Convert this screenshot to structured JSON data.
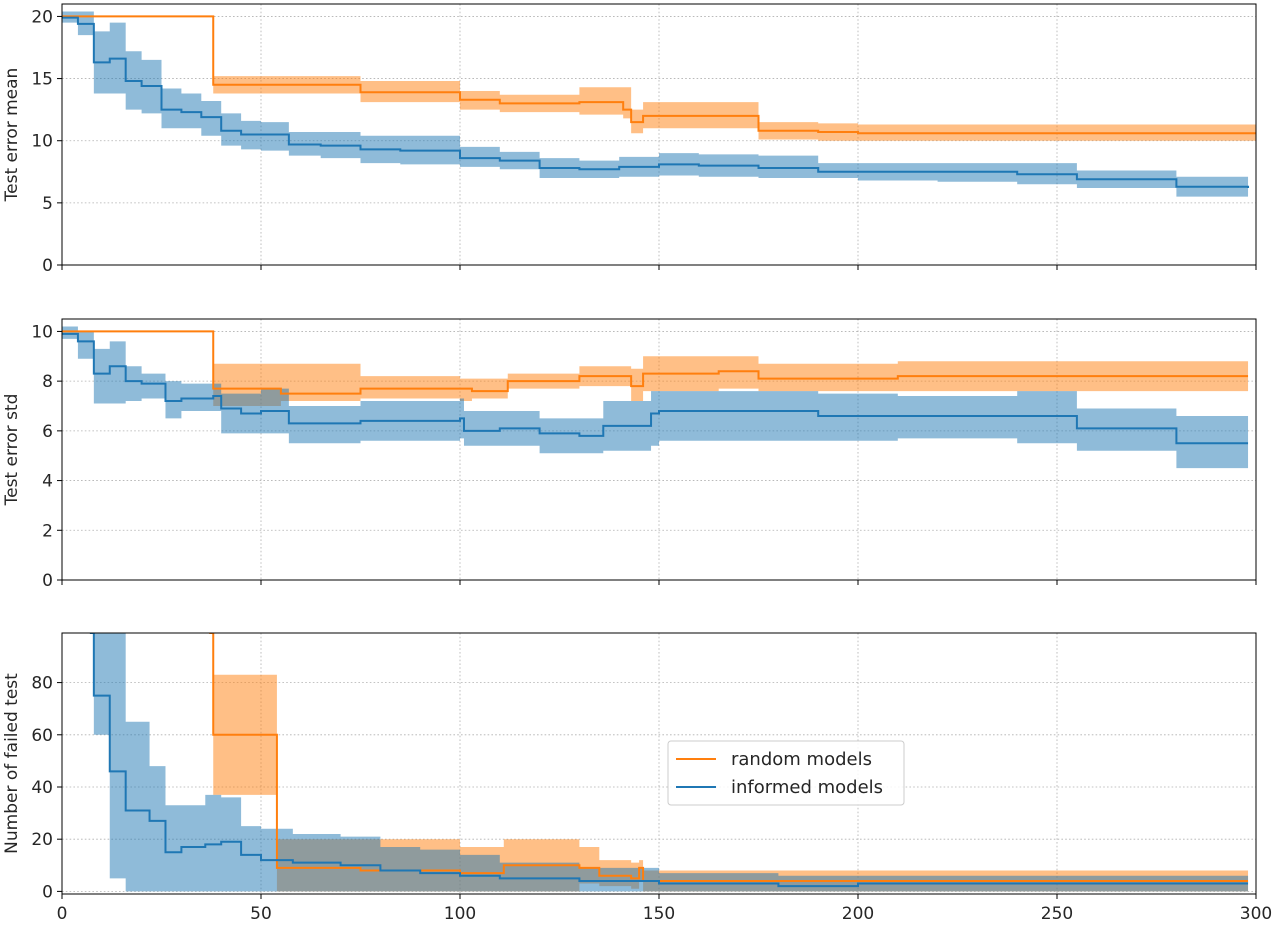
{
  "chart_data": [
    {
      "type": "line",
      "ylabel": "Test error mean",
      "xlim": [
        0,
        300
      ],
      "ylim": [
        0,
        21
      ],
      "yticks": [
        0,
        5,
        10,
        15,
        20
      ],
      "xticks": [
        0,
        50,
        100,
        150,
        200,
        250,
        300
      ],
      "show_x_tick_labels": false,
      "grid": true,
      "series": [
        {
          "name": "random models",
          "color": "#ff7f0e",
          "band_color": "#ffbf86",
          "x": [
            0,
            37,
            38,
            75,
            100,
            110,
            130,
            141,
            143,
            145,
            146,
            150,
            174,
            175,
            190,
            200,
            300
          ],
          "y": [
            20,
            20,
            14.5,
            13.9,
            13.3,
            13.0,
            13.1,
            12.5,
            11.5,
            11.5,
            12.0,
            12.0,
            12.0,
            10.8,
            10.7,
            10.6,
            10.6
          ],
          "lower": [
            20,
            20,
            13.8,
            13.1,
            12.5,
            12.3,
            12.1,
            11.8,
            10.6,
            10.6,
            11.0,
            11.0,
            11.0,
            10.1,
            10.0,
            10.0,
            10.0
          ],
          "upper": [
            20,
            20,
            15.2,
            14.8,
            14.0,
            13.7,
            14.3,
            14.3,
            12.5,
            12.5,
            13.1,
            13.1,
            13.1,
            11.5,
            11.4,
            11.3,
            11.3
          ]
        },
        {
          "name": "informed models",
          "color": "#1f77b4",
          "band_color": "#8fbbd9",
          "x": [
            0,
            4,
            8,
            12,
            16,
            20,
            25,
            30,
            35,
            40,
            45,
            50,
            57,
            65,
            75,
            85,
            100,
            110,
            120,
            130,
            140,
            150,
            160,
            175,
            190,
            200,
            220,
            240,
            255,
            280,
            298
          ],
          "y": [
            19.9,
            19.4,
            16.3,
            16.6,
            14.8,
            14.4,
            12.5,
            12.3,
            11.9,
            10.8,
            10.5,
            10.5,
            9.7,
            9.6,
            9.3,
            9.2,
            8.6,
            8.4,
            7.8,
            7.7,
            7.9,
            8.1,
            8.0,
            7.8,
            7.5,
            7.5,
            7.5,
            7.3,
            6.9,
            6.3,
            6.2
          ],
          "lower": [
            19.5,
            18.5,
            13.8,
            13.8,
            12.5,
            12.2,
            11.0,
            11.0,
            10.4,
            9.6,
            9.3,
            9.2,
            8.8,
            8.6,
            8.2,
            8.1,
            7.9,
            7.7,
            7.0,
            7.0,
            7.1,
            7.2,
            7.1,
            7.0,
            7.0,
            6.8,
            6.7,
            6.5,
            6.2,
            5.5,
            5.4
          ],
          "upper": [
            20.4,
            20.4,
            18.8,
            19.5,
            17.2,
            16.5,
            14.2,
            13.8,
            13.2,
            12.2,
            11.6,
            11.5,
            10.7,
            10.7,
            10.4,
            10.4,
            9.5,
            9.1,
            8.6,
            8.4,
            8.7,
            9.0,
            8.9,
            8.8,
            8.2,
            8.2,
            8.2,
            8.2,
            7.6,
            7.1,
            7.0
          ]
        }
      ]
    },
    {
      "type": "line",
      "ylabel": "Test error std",
      "xlim": [
        0,
        300
      ],
      "ylim": [
        0,
        10.5
      ],
      "yticks": [
        0,
        2,
        4,
        6,
        8,
        10
      ],
      "xticks": [
        0,
        50,
        100,
        150,
        200,
        250,
        300
      ],
      "show_x_tick_labels": false,
      "grid": true,
      "series": [
        {
          "name": "random models",
          "color": "#ff7f0e",
          "band_color": "#ffbf86",
          "x": [
            0,
            37,
            38,
            55,
            75,
            100,
            103,
            112,
            130,
            141,
            143,
            146,
            150,
            165,
            173,
            175,
            210,
            298
          ],
          "y": [
            10,
            10,
            7.7,
            7.5,
            7.7,
            7.7,
            7.6,
            8.0,
            8.2,
            8.2,
            7.8,
            8.3,
            8.3,
            8.4,
            8.4,
            8.1,
            8.2,
            8.2
          ],
          "lower": [
            10,
            10,
            7.0,
            7.2,
            7.3,
            7.2,
            7.3,
            7.7,
            7.8,
            7.8,
            7.2,
            7.6,
            7.6,
            7.7,
            7.7,
            7.6,
            7.6,
            7.6
          ],
          "upper": [
            10,
            10,
            8.7,
            8.7,
            8.2,
            8.1,
            8.1,
            8.3,
            8.6,
            8.6,
            8.5,
            9.0,
            9.0,
            9.0,
            9.0,
            8.7,
            8.8,
            8.8
          ]
        },
        {
          "name": "informed models",
          "color": "#1f77b4",
          "band_color": "#8fbbd9",
          "x": [
            0,
            4,
            8,
            12,
            16,
            20,
            26,
            30,
            35,
            38,
            40,
            45,
            50,
            57,
            65,
            75,
            85,
            100,
            101,
            110,
            120,
            130,
            136,
            148,
            150,
            175,
            190,
            210,
            240,
            255,
            280,
            298
          ],
          "y": [
            9.9,
            9.6,
            8.3,
            8.6,
            8.0,
            7.9,
            7.2,
            7.3,
            7.3,
            7.4,
            6.9,
            6.7,
            6.8,
            6.3,
            6.3,
            6.4,
            6.4,
            6.5,
            6.0,
            6.1,
            5.9,
            5.8,
            6.2,
            6.7,
            6.8,
            6.8,
            6.6,
            6.6,
            6.6,
            6.1,
            5.5,
            5.5
          ],
          "lower": [
            9.7,
            8.9,
            7.1,
            7.1,
            7.2,
            7.3,
            6.5,
            6.8,
            6.8,
            6.8,
            5.9,
            5.9,
            5.9,
            5.5,
            5.5,
            5.6,
            5.6,
            5.7,
            5.4,
            5.4,
            5.1,
            5.1,
            5.2,
            5.4,
            5.6,
            5.6,
            5.6,
            5.7,
            5.5,
            5.2,
            4.5,
            4.5
          ],
          "upper": [
            10.2,
            10.0,
            9.3,
            9.6,
            8.6,
            8.3,
            8.0,
            7.9,
            7.9,
            7.9,
            7.5,
            7.5,
            7.7,
            7.0,
            7.0,
            7.2,
            7.2,
            7.3,
            6.8,
            6.8,
            6.5,
            6.5,
            7.2,
            7.6,
            7.6,
            7.6,
            7.5,
            7.4,
            7.6,
            6.9,
            6.6,
            6.5
          ]
        }
      ]
    },
    {
      "type": "line",
      "ylabel": "Number of failed test",
      "xlim": [
        0,
        300
      ],
      "ylim": [
        -1,
        99
      ],
      "yticks": [
        0,
        20,
        40,
        60,
        80
      ],
      "xticks": [
        0,
        50,
        100,
        150,
        200,
        250,
        300
      ],
      "show_x_tick_labels": true,
      "grid": true,
      "series": [
        {
          "name": "random models",
          "color": "#ff7f0e",
          "band_color": "#ffbf86",
          "x": [
            37,
            38,
            53,
            54,
            75,
            100,
            111,
            130,
            135,
            143,
            145,
            146,
            180,
            298
          ],
          "y": [
            99,
            60,
            60,
            9,
            8,
            7,
            10,
            9,
            6,
            5,
            9,
            4,
            4,
            4
          ],
          "lower": [
            99,
            37,
            37,
            0,
            0,
            0,
            0,
            3,
            2,
            1,
            4,
            0,
            0,
            0
          ],
          "upper": [
            99,
            83,
            83,
            20,
            20,
            17,
            20,
            17,
            12,
            11,
            12,
            8,
            8,
            8
          ]
        },
        {
          "name": "informed models",
          "color": "#1f77b4",
          "band_color": "#8fbbd9",
          "x": [
            7,
            8,
            12,
            16,
            22,
            26,
            30,
            36,
            40,
            45,
            50,
            58,
            70,
            80,
            90,
            100,
            110,
            130,
            150,
            180,
            200,
            250,
            298
          ],
          "y": [
            99,
            75,
            46,
            31,
            27,
            15,
            17,
            18,
            19,
            14,
            12,
            11,
            10,
            8,
            7,
            6,
            5,
            4,
            3,
            2,
            3,
            3,
            3
          ],
          "lower": [
            99,
            60,
            5,
            0,
            0,
            0,
            0,
            0,
            0,
            0,
            0,
            0,
            0,
            0,
            0,
            0,
            0,
            0,
            0,
            0,
            0,
            0,
            0
          ],
          "upper": [
            99,
            99,
            99,
            65,
            48,
            33,
            33,
            37,
            36,
            25,
            24,
            22,
            21,
            17,
            16,
            14,
            11,
            9,
            7,
            6,
            6,
            6,
            6
          ]
        }
      ]
    }
  ],
  "legend": {
    "entries": [
      "random models",
      "informed models"
    ],
    "placement": "center (bottom panel)"
  }
}
